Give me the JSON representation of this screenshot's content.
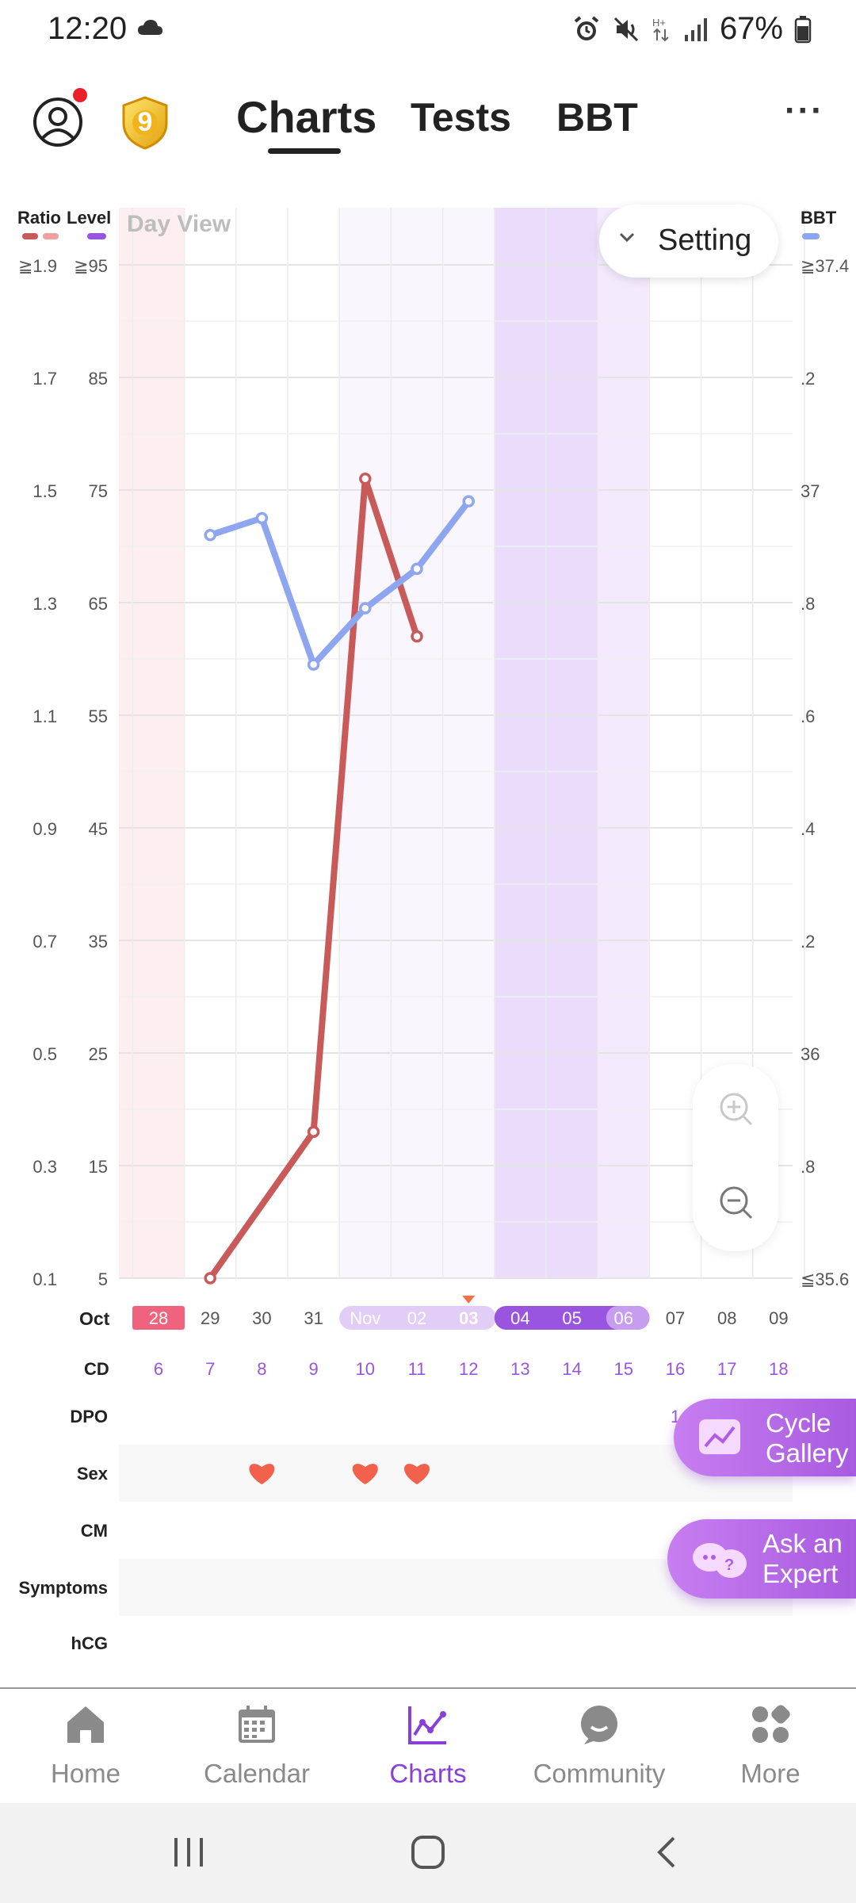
{
  "status_bar": {
    "time": "12:20",
    "battery": "67%"
  },
  "header": {
    "tabs": [
      {
        "label": "Charts"
      },
      {
        "label": "Tests"
      },
      {
        "label": "BBT"
      }
    ],
    "badge_level": "9",
    "more_label": "···"
  },
  "chart": {
    "view_label": "Day View",
    "setting_label": "Setting",
    "left_axis_title_1": "Ratio",
    "left_axis_title_2": "Level",
    "right_axis_title": "BBT",
    "ratio_ticks": [
      "≧1.9",
      "1.7",
      "1.5",
      "1.3",
      "1.1",
      "0.9",
      "0.7",
      "0.5",
      "0.3",
      "0.1"
    ],
    "level_ticks": [
      "≧95",
      "85",
      "75",
      "65",
      "55",
      "45",
      "35",
      "25",
      "15",
      "5"
    ],
    "bbt_ticks": [
      "≧37.4",
      ".2",
      "37",
      ".8",
      ".6",
      ".4",
      ".2",
      "36",
      ".8",
      "≦35.6"
    ],
    "month_label": "Oct",
    "cd_label": "CD",
    "dates": [
      "28",
      "29",
      "30",
      "31",
      "Nov",
      "02",
      "03",
      "04",
      "05",
      "06",
      "07",
      "08",
      "09"
    ],
    "cds": [
      "6",
      "7",
      "8",
      "9",
      "10",
      "11",
      "12",
      "13",
      "14",
      "15",
      "16",
      "17",
      "18"
    ],
    "rows": [
      "DPO",
      "Sex",
      "CM",
      "Symptoms",
      "hCG"
    ],
    "dpo_partial": "1",
    "sex_days": [
      2,
      4,
      5
    ],
    "colors": {
      "red": "#c85a5a",
      "blue": "#8ea6f0",
      "pink": "#f0637f",
      "purple": "#9a55e0"
    }
  },
  "chart_data": {
    "type": "line",
    "categories": [
      "Oct 28",
      "Oct 29",
      "Oct 30",
      "Oct 31",
      "Nov 01",
      "Nov 02",
      "Nov 03",
      "Nov 04",
      "Nov 05",
      "Nov 06",
      "Nov 07",
      "Nov 08",
      "Nov 09"
    ],
    "series": [
      {
        "name": "",
        "axis": "Level",
        "color": "#c85a5a",
        "points": [
          [
            1,
            5
          ],
          [
            3,
            18
          ],
          [
            4,
            76
          ],
          [
            5,
            62
          ]
        ]
      },
      {
        "name": "",
        "axis": "BBT",
        "color": "#8ea6f0",
        "points": [
          [
            1,
            36.92
          ],
          [
            2,
            36.95
          ],
          [
            3,
            36.69
          ],
          [
            4,
            36.79
          ],
          [
            5,
            36.86
          ],
          [
            6,
            36.98
          ]
        ]
      }
    ],
    "level_range": [
      5,
      95
    ],
    "ratio_range": [
      0.1,
      1.9
    ],
    "bbt_range": [
      35.6,
      37.4
    ],
    "sex_days": [
      "Oct 30",
      "Nov 01",
      "Nov 02"
    ],
    "grid": true
  },
  "floating": {
    "cycle_gallery": [
      "Cycle",
      "Gallery"
    ],
    "ask_expert": [
      "Ask an",
      "Expert"
    ]
  },
  "bottom_nav": [
    {
      "label": "Home"
    },
    {
      "label": "Calendar"
    },
    {
      "label": "Charts"
    },
    {
      "label": "Community"
    },
    {
      "label": "More"
    }
  ]
}
